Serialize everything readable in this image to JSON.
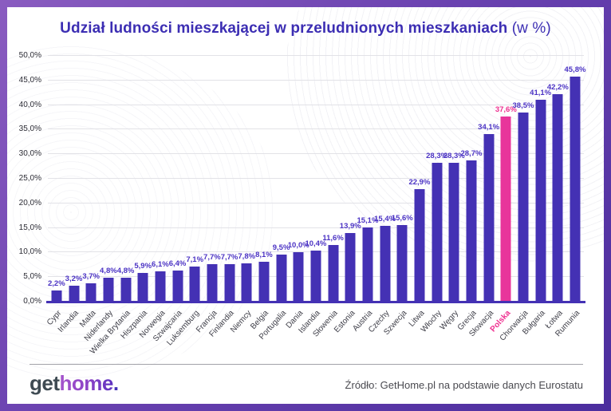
{
  "title": {
    "main": "Udział ludności mieszkającej w przeludnionych mieszkaniach",
    "suffix": " (w %)"
  },
  "chart_data": {
    "type": "bar",
    "title": "Udział ludności mieszkającej w przeludnionych mieszkaniach (w %)",
    "unit": "%",
    "ylim": [
      0,
      50
    ],
    "ytick_step": 5,
    "yticks": [
      "0,0%",
      "5,0%",
      "10,0%",
      "15,0%",
      "20,0%",
      "25,0%",
      "30,0%",
      "35,0%",
      "40,0%",
      "45,0%",
      "50,0%"
    ],
    "grid": true,
    "legend": "none",
    "categories": [
      "Cypr",
      "Irlandia",
      "Malta",
      "Niderlandy",
      "Wielka Brytania",
      "Hiszpania",
      "Norwegia",
      "Szwajcaria",
      "Luksemburg",
      "Francja",
      "Finlandia",
      "Niemcy",
      "Belgia",
      "Portugalia",
      "Dania",
      "Islandia",
      "Słowenia",
      "Estonia",
      "Austria",
      "Czechy",
      "Szwecja",
      "Litwa",
      "Włochy",
      "Węgry",
      "Grecja",
      "Słowacja",
      "Polska",
      "Chorwacja",
      "Bułgaria",
      "Łotwa",
      "Rumunia"
    ],
    "values": [
      2.2,
      3.2,
      3.7,
      4.8,
      4.8,
      5.9,
      6.1,
      6.4,
      7.1,
      7.7,
      7.7,
      7.8,
      8.1,
      9.5,
      10.0,
      10.4,
      11.6,
      13.9,
      15.1,
      15.4,
      15.6,
      22.9,
      28.3,
      28.3,
      28.7,
      34.1,
      37.6,
      38.5,
      41.1,
      42.2,
      45.8
    ],
    "value_labels": [
      "2,2%",
      "3,2%",
      "3,7%",
      "4,8%",
      "4,8%",
      "5,9%",
      "6,1%",
      "6,4%",
      "7,1%",
      "7,7%",
      "7,7%",
      "7,8%",
      "8,1%",
      "9,5%",
      "10,0%",
      "10,4%",
      "11,6%",
      "13,9%",
      "15,1%",
      "15,4%",
      "15,6%",
      "22,9%",
      "28,3%",
      "28,3%",
      "28,7%",
      "34,1%",
      "37,6%",
      "38,5%",
      "41,1%",
      "42,2%",
      "45,8%"
    ],
    "highlight_category": "Polska",
    "highlight_index": 26,
    "bar_color": "#4431b4",
    "highlight_color": "#e8359b",
    "value_label_color": "#4b33c4",
    "highlight_label_color": "#ef2e8f"
  },
  "footer": {
    "logo": {
      "part1": "get",
      "part2": "home",
      "part3": "."
    },
    "source": "Źródło: GetHome.pl na podstawie danych Eurostatu"
  },
  "colors": {
    "frame_gradient_start": "#8a5cc0",
    "frame_gradient_end": "#4b2d9e",
    "title": "#3c2eb3",
    "gridline": "#e2e2e7",
    "axis_line": "#4431b4"
  }
}
